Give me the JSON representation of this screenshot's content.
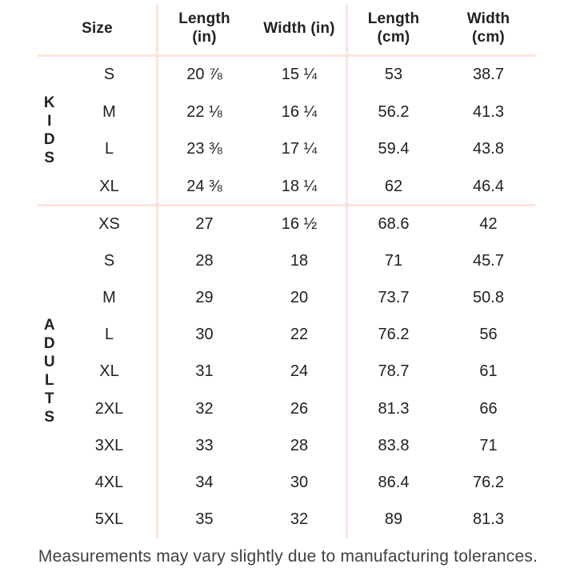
{
  "chart_data": {
    "type": "table",
    "columns": [
      "Size",
      "Length (in)",
      "Width (in)",
      "Length (cm)",
      "Width (cm)"
    ],
    "groups": [
      {
        "group": "KIDS",
        "rows": [
          [
            "S",
            "20 ⅞",
            "15 ¼",
            "53",
            "38.7"
          ],
          [
            "M",
            "22 ⅛",
            "16 ¼",
            "56.2",
            "41.3"
          ],
          [
            "L",
            "23 ⅜",
            "17 ¼",
            "59.4",
            "43.8"
          ],
          [
            "XL",
            "24 ⅜",
            "18 ¼",
            "62",
            "46.4"
          ]
        ]
      },
      {
        "group": "ADULTS",
        "rows": [
          [
            "XS",
            "27",
            "16 ½",
            "68.6",
            "42"
          ],
          [
            "S",
            "28",
            "18",
            "71",
            "45.7"
          ],
          [
            "M",
            "29",
            "20",
            "73.7",
            "50.8"
          ],
          [
            "L",
            "30",
            "22",
            "76.2",
            "56"
          ],
          [
            "XL",
            "31",
            "24",
            "78.7",
            "61"
          ],
          [
            "2XL",
            "32",
            "26",
            "81.3",
            "66"
          ],
          [
            "3XL",
            "33",
            "28",
            "83.8",
            "71"
          ],
          [
            "4XL",
            "34",
            "30",
            "86.4",
            "76.2"
          ],
          [
            "5XL",
            "35",
            "32",
            "89",
            "81.3"
          ]
        ]
      }
    ],
    "footnote": "Measurements may vary slightly due to manufacturing tolerances."
  },
  "ui": {
    "headers": {
      "size": "Size",
      "length_in": "Length\n(in)",
      "width_in": "Width (in)",
      "length_cm": "Length\n(cm)",
      "width_cm": "Width\n(cm)"
    },
    "colors": {
      "divider": "#fbe3da",
      "text": "#212121",
      "footnote_text": "#404040",
      "background": "#ffffff"
    }
  }
}
